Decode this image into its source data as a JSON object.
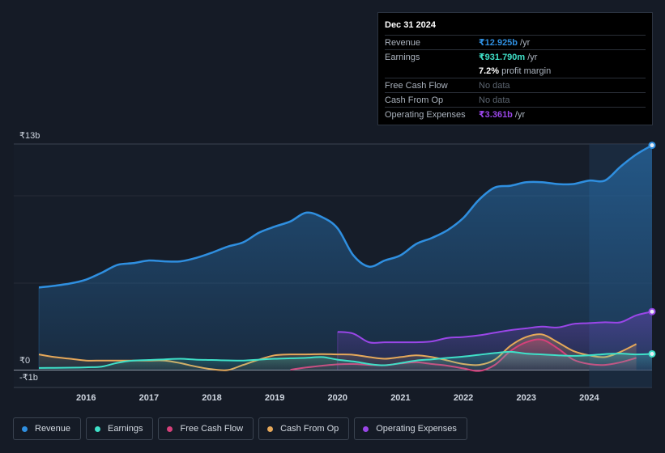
{
  "tooltip": {
    "date": "Dec 31 2024",
    "revenue_label": "Revenue",
    "revenue_value": "₹12.925b",
    "revenue_unit": "/yr",
    "earnings_label": "Earnings",
    "earnings_value": "₹931.790m",
    "earnings_unit": "/yr",
    "margin_value": "7.2%",
    "margin_label": "profit margin",
    "fcf_label": "Free Cash Flow",
    "fcf_value": "No data",
    "cfo_label": "Cash From Op",
    "cfo_value": "No data",
    "opex_label": "Operating Expenses",
    "opex_value": "₹3.361b",
    "opex_unit": "/yr"
  },
  "legend": {
    "revenue": "Revenue",
    "earnings": "Earnings",
    "fcf": "Free Cash Flow",
    "cfo": "Cash From Op",
    "opex": "Operating Expenses"
  },
  "colors": {
    "revenue": "#2f8fe0",
    "earnings": "#3fe0c8",
    "fcf": "#d6407a",
    "cfo": "#e6a85a",
    "opex": "#9a46e8"
  },
  "chart_data": {
    "type": "line",
    "title": "",
    "ylabel": "",
    "xlabel": "",
    "y_tick_labels": [
      "₹13b",
      "₹0",
      "-₹1b"
    ],
    "y_ticks": [
      13,
      0,
      -1
    ],
    "ylim": [
      -1,
      13
    ],
    "xlim": [
      2015.25,
      2025.0
    ],
    "x_tick_labels": [
      "2016",
      "2017",
      "2018",
      "2019",
      "2020",
      "2021",
      "2022",
      "2023",
      "2024"
    ],
    "x_ticks": [
      2016,
      2017,
      2018,
      2019,
      2020,
      2021,
      2022,
      2023,
      2024
    ],
    "forecast_start": 2024.0,
    "series": [
      {
        "name": "Revenue",
        "key": "revenue",
        "fill": true,
        "x": [
          2015.25,
          2015.5,
          2015.75,
          2016.0,
          2016.25,
          2016.5,
          2016.75,
          2017.0,
          2017.25,
          2017.5,
          2017.75,
          2018.0,
          2018.25,
          2018.5,
          2018.75,
          2019.0,
          2019.25,
          2019.5,
          2019.75,
          2020.0,
          2020.25,
          2020.5,
          2020.75,
          2021.0,
          2021.25,
          2021.5,
          2021.75,
          2022.0,
          2022.25,
          2022.5,
          2022.75,
          2023.0,
          2023.25,
          2023.5,
          2023.75,
          2024.0,
          2024.25,
          2024.5,
          2024.75,
          2025.0
        ],
        "values": [
          4.75,
          4.85,
          4.98,
          5.2,
          5.6,
          6.05,
          6.15,
          6.3,
          6.25,
          6.25,
          6.45,
          6.75,
          7.1,
          7.35,
          7.9,
          8.25,
          8.55,
          9.05,
          8.8,
          8.15,
          6.6,
          5.95,
          6.3,
          6.6,
          7.25,
          7.6,
          8.05,
          8.75,
          9.8,
          10.5,
          10.6,
          10.8,
          10.8,
          10.7,
          10.7,
          10.9,
          10.9,
          11.7,
          12.4,
          12.925
        ]
      },
      {
        "name": "Earnings",
        "key": "earnings",
        "fill": true,
        "x": [
          2015.25,
          2015.5,
          2015.75,
          2016.0,
          2016.25,
          2016.5,
          2016.75,
          2017.0,
          2017.25,
          2017.5,
          2017.75,
          2018.0,
          2018.25,
          2018.5,
          2018.75,
          2019.0,
          2019.25,
          2019.5,
          2019.75,
          2020.0,
          2020.25,
          2020.5,
          2020.75,
          2021.0,
          2021.25,
          2021.5,
          2021.75,
          2022.0,
          2022.25,
          2022.5,
          2022.75,
          2023.0,
          2023.25,
          2023.5,
          2023.75,
          2024.0,
          2024.25,
          2024.5,
          2024.75,
          2025.0
        ],
        "values": [
          0.12,
          0.13,
          0.14,
          0.16,
          0.2,
          0.42,
          0.55,
          0.58,
          0.62,
          0.65,
          0.6,
          0.58,
          0.56,
          0.55,
          0.6,
          0.65,
          0.68,
          0.7,
          0.75,
          0.6,
          0.5,
          0.35,
          0.28,
          0.4,
          0.55,
          0.62,
          0.7,
          0.78,
          0.88,
          0.98,
          1.05,
          0.95,
          0.9,
          0.85,
          0.82,
          0.85,
          0.92,
          0.95,
          0.9,
          0.93179
        ]
      },
      {
        "name": "Free Cash Flow",
        "key": "fcf",
        "fill": true,
        "x": [
          2019.25,
          2019.5,
          2019.75,
          2020.0,
          2020.25,
          2020.5,
          2020.75,
          2021.0,
          2021.25,
          2021.5,
          2021.75,
          2022.0,
          2022.25,
          2022.5,
          2022.75,
          2023.0,
          2023.25,
          2023.5,
          2023.75,
          2024.0,
          2024.25,
          2024.5,
          2024.75
        ],
        "values": [
          0.02,
          0.15,
          0.25,
          0.33,
          0.35,
          0.3,
          0.28,
          0.38,
          0.45,
          0.35,
          0.25,
          0.1,
          -0.05,
          0.3,
          1.1,
          1.6,
          1.75,
          1.25,
          0.6,
          0.35,
          0.3,
          0.45,
          0.7
        ]
      },
      {
        "name": "Cash From Op",
        "key": "cfo",
        "fill": true,
        "x": [
          2015.25,
          2015.5,
          2015.75,
          2016.0,
          2016.25,
          2016.5,
          2016.75,
          2017.0,
          2017.25,
          2017.5,
          2017.75,
          2018.0,
          2018.25,
          2018.5,
          2018.75,
          2019.0,
          2019.25,
          2019.5,
          2019.75,
          2020.0,
          2020.25,
          2020.5,
          2020.75,
          2021.0,
          2021.25,
          2021.5,
          2021.75,
          2022.0,
          2022.25,
          2022.5,
          2022.75,
          2023.0,
          2023.25,
          2023.5,
          2023.75,
          2024.0,
          2024.25,
          2024.5,
          2024.75
        ],
        "values": [
          0.9,
          0.75,
          0.65,
          0.55,
          0.55,
          0.55,
          0.55,
          0.55,
          0.55,
          0.4,
          0.2,
          0.05,
          0.0,
          0.3,
          0.6,
          0.85,
          0.9,
          0.9,
          0.92,
          0.9,
          0.88,
          0.75,
          0.65,
          0.75,
          0.85,
          0.75,
          0.55,
          0.35,
          0.3,
          0.6,
          1.4,
          1.9,
          2.05,
          1.6,
          1.1,
          0.85,
          0.75,
          1.05,
          1.5
        ]
      },
      {
        "name": "Operating Expenses",
        "key": "opex",
        "fill": true,
        "x": [
          2020.0,
          2020.25,
          2020.5,
          2020.75,
          2021.0,
          2021.25,
          2021.5,
          2021.75,
          2022.0,
          2022.25,
          2022.5,
          2022.75,
          2023.0,
          2023.25,
          2023.5,
          2023.75,
          2024.0,
          2024.25,
          2024.5,
          2024.75,
          2025.0
        ],
        "values": [
          2.2,
          2.1,
          1.6,
          1.6,
          1.6,
          1.6,
          1.65,
          1.85,
          1.9,
          2.0,
          2.15,
          2.3,
          2.4,
          2.5,
          2.45,
          2.65,
          2.7,
          2.75,
          2.75,
          3.15,
          3.361
        ]
      }
    ]
  }
}
